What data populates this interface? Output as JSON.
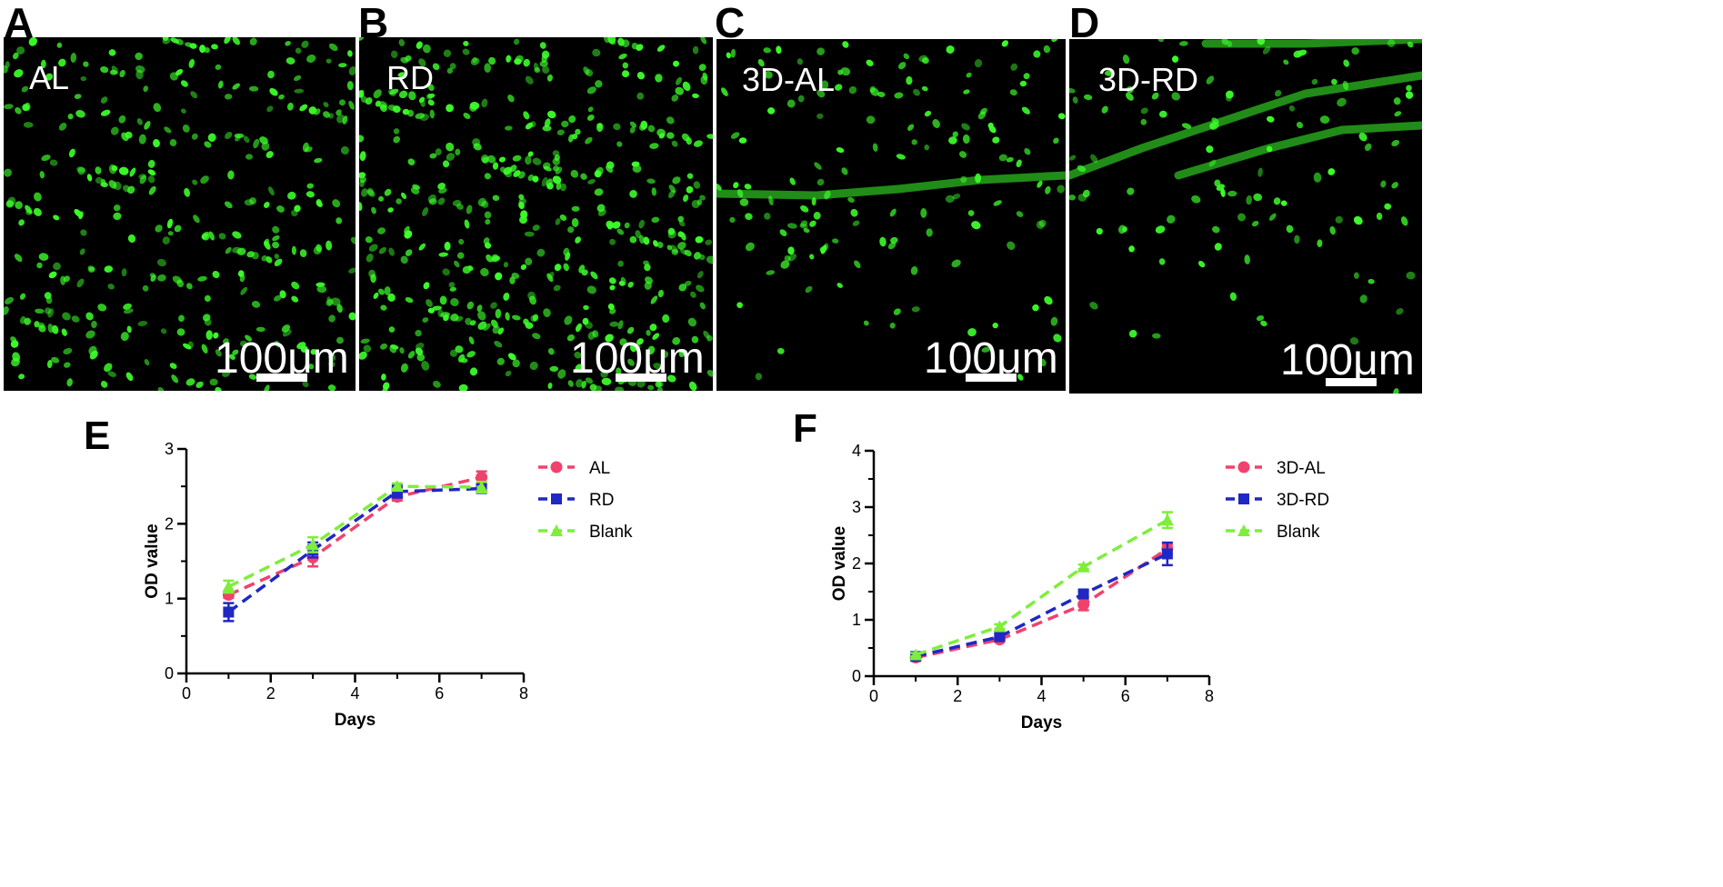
{
  "panels": [
    {
      "letter": "A",
      "label": "AL",
      "scale": "100μm"
    },
    {
      "letter": "B",
      "label": "RD",
      "scale": "100μm"
    },
    {
      "letter": "C",
      "label": "3D-AL",
      "scale": "100μm"
    },
    {
      "letter": "D",
      "label": "3D-RD",
      "scale": "100μm"
    }
  ],
  "colors": {
    "red": "#f0426c",
    "blue": "#1f27c4",
    "green": "#7eee3b",
    "cell": "#3dff2a"
  },
  "chart_data": [
    {
      "letter": "E",
      "type": "line",
      "xlabel": "Days",
      "ylabel": "OD value",
      "xlim": [
        0,
        8
      ],
      "ylim": [
        0,
        3
      ],
      "xticks": [
        "0",
        "2",
        "4",
        "6",
        "8"
      ],
      "yticks": [
        "0",
        "1",
        "2",
        "3"
      ],
      "x": [
        1,
        3,
        5,
        7
      ],
      "legend_position": "right",
      "series": [
        {
          "name": "AL",
          "color": "#f0426c",
          "marker": "circle",
          "values": [
            1.05,
            1.55,
            2.36,
            2.62
          ],
          "err": [
            0.04,
            0.12,
            0.05,
            0.08
          ]
        },
        {
          "name": "RD",
          "color": "#1f27c4",
          "marker": "square",
          "values": [
            0.82,
            1.65,
            2.43,
            2.47
          ],
          "err": [
            0.12,
            0.1,
            0.08,
            0.05
          ]
        },
        {
          "name": "Blank",
          "color": "#7eee3b",
          "marker": "triangle",
          "values": [
            1.16,
            1.72,
            2.5,
            2.49
          ],
          "err": [
            0.08,
            0.1,
            0.04,
            0.07
          ]
        }
      ]
    },
    {
      "letter": "F",
      "type": "line",
      "xlabel": "Days",
      "ylabel": "OD value",
      "xlim": [
        0,
        8
      ],
      "ylim": [
        0,
        4
      ],
      "xticks": [
        "0",
        "2",
        "4",
        "6",
        "8"
      ],
      "yticks": [
        "0",
        "1",
        "2",
        "3",
        "4"
      ],
      "x": [
        1,
        3,
        5,
        7
      ],
      "legend_position": "right",
      "series": [
        {
          "name": "3D-AL",
          "color": "#f0426c",
          "marker": "circle",
          "values": [
            0.33,
            0.65,
            1.27,
            2.26
          ],
          "err": [
            0.03,
            0.04,
            0.1,
            0.08
          ]
        },
        {
          "name": "3D-RD",
          "color": "#1f27c4",
          "marker": "square",
          "values": [
            0.35,
            0.7,
            1.46,
            2.17
          ],
          "err": [
            0.03,
            0.04,
            0.05,
            0.2
          ]
        },
        {
          "name": "Blank",
          "color": "#7eee3b",
          "marker": "triangle",
          "values": [
            0.38,
            0.88,
            1.94,
            2.77
          ],
          "err": [
            0.03,
            0.04,
            0.04,
            0.14
          ]
        }
      ]
    }
  ]
}
